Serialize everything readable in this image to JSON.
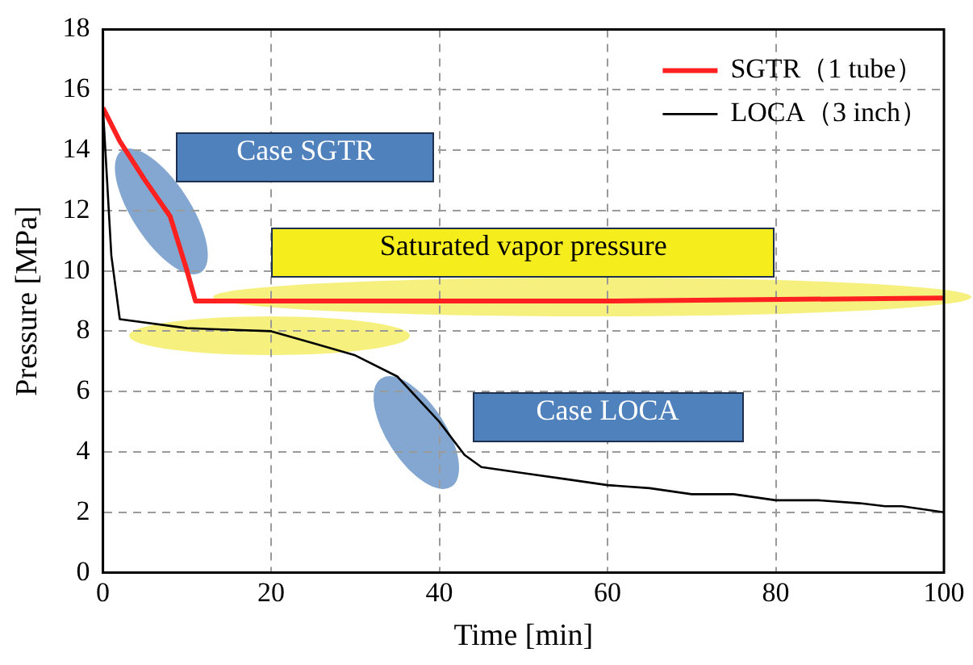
{
  "chart_data": {
    "type": "line",
    "xlabel": "Time [min]",
    "ylabel": "Pressure [MPa]",
    "xlim": [
      0,
      100
    ],
    "xticks": [
      0,
      20,
      40,
      60,
      80,
      100
    ],
    "ylim": [
      0,
      18
    ],
    "yticks": [
      0,
      2,
      4,
      6,
      8,
      10,
      12,
      14,
      16,
      18
    ],
    "grid": true,
    "legend": "top right",
    "marker": "none",
    "series": [
      {
        "name": "SGTR（1 tube）",
        "color": "#ff2020",
        "x": [
          0,
          2,
          5,
          8,
          10,
          11,
          30,
          60,
          100
        ],
        "values": [
          15.4,
          14.3,
          13.0,
          11.8,
          10.0,
          9.0,
          9.0,
          9.0,
          9.1
        ]
      },
      {
        "name": "LOCA（3 inch）",
        "color": "#000000",
        "x": [
          0,
          1,
          2,
          10,
          20,
          25,
          30,
          35,
          40,
          43,
          45,
          50,
          55,
          60,
          65,
          70,
          75,
          80,
          85,
          90,
          93,
          95,
          100
        ],
        "values": [
          15.4,
          10.5,
          8.4,
          8.1,
          8.0,
          7.6,
          7.2,
          6.5,
          5.0,
          3.9,
          3.5,
          3.3,
          3.1,
          2.9,
          2.8,
          2.6,
          2.6,
          2.4,
          2.4,
          2.3,
          2.2,
          2.2,
          2.0
        ]
      }
    ],
    "annotations": [
      "Case SGTR",
      "Saturated vapor pressure",
      "Case LOCA"
    ]
  }
}
